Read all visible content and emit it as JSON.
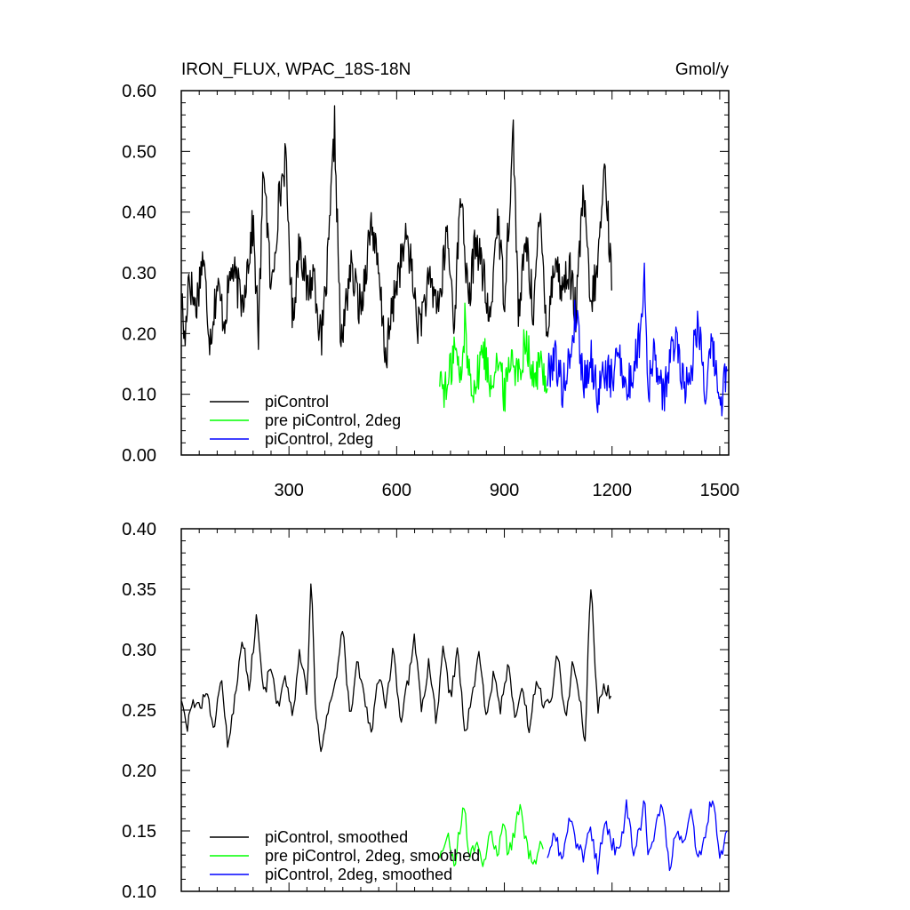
{
  "chart_data": [
    {
      "type": "line",
      "title": "IRON_FLUX, WPAC_18S-18N",
      "units": "Gmol/y",
      "xlim": [
        0,
        1525
      ],
      "ylim": [
        0.0,
        0.6
      ],
      "xticks": [
        300,
        600,
        900,
        1200,
        1500
      ],
      "yticks": [
        0.0,
        0.1,
        0.2,
        0.3,
        0.4,
        0.5,
        0.6
      ],
      "ytick_labels": [
        "0.00",
        "0.10",
        "0.20",
        "0.30",
        "0.40",
        "0.50",
        "0.60"
      ],
      "legend": "bottom-left",
      "grid": false,
      "series": [
        {
          "name": "piControl",
          "color": "#000000",
          "x_range": [
            1,
            1200
          ],
          "points": [
            [
              1,
              0.26
            ],
            [
              10,
              0.18
            ],
            [
              20,
              0.3
            ],
            [
              40,
              0.24
            ],
            [
              60,
              0.33
            ],
            [
              80,
              0.19
            ],
            [
              100,
              0.28
            ],
            [
              120,
              0.22
            ],
            [
              140,
              0.31
            ],
            [
              170,
              0.25
            ],
            [
              200,
              0.38
            ],
            [
              215,
              0.2
            ],
            [
              230,
              0.49
            ],
            [
              250,
              0.26
            ],
            [
              270,
              0.41
            ],
            [
              290,
              0.49
            ],
            [
              310,
              0.22
            ],
            [
              330,
              0.36
            ],
            [
              350,
              0.27
            ],
            [
              370,
              0.3
            ],
            [
              390,
              0.18
            ],
            [
              410,
              0.33
            ],
            [
              427,
              0.54
            ],
            [
              445,
              0.17
            ],
            [
              470,
              0.31
            ],
            [
              500,
              0.24
            ],
            [
              530,
              0.39
            ],
            [
              550,
              0.29
            ],
            [
              570,
              0.16
            ],
            [
              600,
              0.29
            ],
            [
              630,
              0.36
            ],
            [
              660,
              0.21
            ],
            [
              690,
              0.28
            ],
            [
              720,
              0.25
            ],
            [
              740,
              0.37
            ],
            [
              760,
              0.22
            ],
            [
              780,
              0.44
            ],
            [
              800,
              0.24
            ],
            [
              820,
              0.36
            ],
            [
              840,
              0.3
            ],
            [
              860,
              0.21
            ],
            [
              880,
              0.4
            ],
            [
              900,
              0.26
            ],
            [
              925,
              0.53
            ],
            [
              940,
              0.22
            ],
            [
              960,
              0.36
            ],
            [
              980,
              0.24
            ],
            [
              1000,
              0.39
            ],
            [
              1020,
              0.2
            ],
            [
              1040,
              0.33
            ],
            [
              1060,
              0.27
            ],
            [
              1080,
              0.31
            ],
            [
              1100,
              0.23
            ],
            [
              1120,
              0.44
            ],
            [
              1140,
              0.24
            ],
            [
              1160,
              0.31
            ],
            [
              1180,
              0.48
            ],
            [
              1200,
              0.27
            ]
          ]
        },
        {
          "name": "pre piControl, 2deg",
          "color": "#00ff00",
          "x_range": [
            720,
            1020
          ],
          "points": [
            [
              720,
              0.13
            ],
            [
              740,
              0.1
            ],
            [
              760,
              0.18
            ],
            [
              780,
              0.12
            ],
            [
              790,
              0.22
            ],
            [
              800,
              0.14
            ],
            [
              820,
              0.11
            ],
            [
              840,
              0.18
            ],
            [
              860,
              0.12
            ],
            [
              880,
              0.16
            ],
            [
              900,
              0.1
            ],
            [
              920,
              0.17
            ],
            [
              940,
              0.13
            ],
            [
              960,
              0.2
            ],
            [
              980,
              0.12
            ],
            [
              1000,
              0.15
            ],
            [
              1020,
              0.12
            ]
          ]
        },
        {
          "name": "piControl, 2deg",
          "color": "#0000ff",
          "x_range": [
            1020,
            1520
          ],
          "points": [
            [
              1020,
              0.13
            ],
            [
              1040,
              0.17
            ],
            [
              1060,
              0.11
            ],
            [
              1080,
              0.15
            ],
            [
              1100,
              0.24
            ],
            [
              1120,
              0.12
            ],
            [
              1140,
              0.16
            ],
            [
              1160,
              0.1
            ],
            [
              1180,
              0.14
            ],
            [
              1200,
              0.12
            ],
            [
              1220,
              0.18
            ],
            [
              1240,
              0.1
            ],
            [
              1260,
              0.14
            ],
            [
              1280,
              0.21
            ],
            [
              1290,
              0.31
            ],
            [
              1300,
              0.11
            ],
            [
              1320,
              0.17
            ],
            [
              1340,
              0.09
            ],
            [
              1360,
              0.15
            ],
            [
              1380,
              0.2
            ],
            [
              1400,
              0.11
            ],
            [
              1420,
              0.14
            ],
            [
              1440,
              0.23
            ],
            [
              1460,
              0.1
            ],
            [
              1480,
              0.18
            ],
            [
              1500,
              0.08
            ],
            [
              1520,
              0.14
            ]
          ]
        }
      ]
    },
    {
      "type": "line",
      "xlim": [
        0,
        1525
      ],
      "ylim": [
        0.1,
        0.4
      ],
      "xticks": [
        300,
        600,
        900,
        1200,
        1500
      ],
      "yticks": [
        0.1,
        0.15,
        0.2,
        0.25,
        0.3,
        0.35,
        0.4
      ],
      "ytick_labels": [
        "0.10",
        "0.15",
        "0.20",
        "0.25",
        "0.30",
        "0.35",
        "0.40"
      ],
      "legend": "bottom-left",
      "grid": false,
      "series": [
        {
          "name": "piControl, smoothed",
          "color": "#000000",
          "x_range": [
            1,
            1200
          ],
          "points": [
            [
              1,
              0.26
            ],
            [
              15,
              0.23
            ],
            [
              30,
              0.26
            ],
            [
              50,
              0.25
            ],
            [
              70,
              0.27
            ],
            [
              90,
              0.23
            ],
            [
              110,
              0.28
            ],
            [
              130,
              0.22
            ],
            [
              150,
              0.26
            ],
            [
              170,
              0.31
            ],
            [
              190,
              0.27
            ],
            [
              210,
              0.33
            ],
            [
              230,
              0.26
            ],
            [
              250,
              0.29
            ],
            [
              270,
              0.25
            ],
            [
              290,
              0.28
            ],
            [
              310,
              0.24
            ],
            [
              330,
              0.3
            ],
            [
              350,
              0.26
            ],
            [
              362,
              0.36
            ],
            [
              375,
              0.24
            ],
            [
              390,
              0.22
            ],
            [
              410,
              0.25
            ],
            [
              430,
              0.27
            ],
            [
              450,
              0.32
            ],
            [
              470,
              0.24
            ],
            [
              490,
              0.29
            ],
            [
              510,
              0.26
            ],
            [
              530,
              0.23
            ],
            [
              550,
              0.28
            ],
            [
              570,
              0.25
            ],
            [
              590,
              0.3
            ],
            [
              610,
              0.24
            ],
            [
              630,
              0.27
            ],
            [
              650,
              0.31
            ],
            [
              670,
              0.25
            ],
            [
              690,
              0.29
            ],
            [
              710,
              0.24
            ],
            [
              730,
              0.3
            ],
            [
              750,
              0.26
            ],
            [
              770,
              0.3
            ],
            [
              790,
              0.23
            ],
            [
              810,
              0.26
            ],
            [
              830,
              0.3
            ],
            [
              850,
              0.24
            ],
            [
              870,
              0.28
            ],
            [
              890,
              0.25
            ],
            [
              910,
              0.29
            ],
            [
              930,
              0.24
            ],
            [
              950,
              0.27
            ],
            [
              970,
              0.23
            ],
            [
              990,
              0.28
            ],
            [
              1010,
              0.25
            ],
            [
              1030,
              0.26
            ],
            [
              1050,
              0.3
            ],
            [
              1070,
              0.24
            ],
            [
              1090,
              0.29
            ],
            [
              1110,
              0.26
            ],
            [
              1125,
              0.22
            ],
            [
              1140,
              0.36
            ],
            [
              1160,
              0.25
            ],
            [
              1180,
              0.27
            ],
            [
              1200,
              0.26
            ]
          ]
        },
        {
          "name": "pre piControl, 2deg, smoothed",
          "color": "#00ff00",
          "x_range": [
            720,
            1010
          ],
          "points": [
            [
              720,
              0.13
            ],
            [
              740,
              0.15
            ],
            [
              760,
              0.12
            ],
            [
              780,
              0.16
            ],
            [
              790,
              0.17
            ],
            [
              800,
              0.13
            ],
            [
              820,
              0.14
            ],
            [
              840,
              0.12
            ],
            [
              860,
              0.15
            ],
            [
              880,
              0.13
            ],
            [
              900,
              0.16
            ],
            [
              910,
              0.13
            ],
            [
              930,
              0.15
            ],
            [
              945,
              0.175
            ],
            [
              960,
              0.14
            ],
            [
              980,
              0.12
            ],
            [
              1000,
              0.14
            ],
            [
              1010,
              0.135
            ]
          ]
        },
        {
          "name": "piControl, 2deg, smoothed",
          "color": "#0000ff",
          "x_range": [
            1020,
            1520
          ],
          "points": [
            [
              1020,
              0.13
            ],
            [
              1040,
              0.15
            ],
            [
              1060,
              0.125
            ],
            [
              1080,
              0.16
            ],
            [
              1100,
              0.14
            ],
            [
              1120,
              0.13
            ],
            [
              1140,
              0.15
            ],
            [
              1160,
              0.12
            ],
            [
              1180,
              0.16
            ],
            [
              1200,
              0.14
            ],
            [
              1220,
              0.13
            ],
            [
              1240,
              0.17
            ],
            [
              1260,
              0.135
            ],
            [
              1280,
              0.155
            ],
            [
              1290,
              0.185
            ],
            [
              1300,
              0.13
            ],
            [
              1320,
              0.15
            ],
            [
              1340,
              0.175
            ],
            [
              1360,
              0.12
            ],
            [
              1380,
              0.15
            ],
            [
              1400,
              0.14
            ],
            [
              1420,
              0.165
            ],
            [
              1440,
              0.125
            ],
            [
              1460,
              0.15
            ],
            [
              1480,
              0.18
            ],
            [
              1500,
              0.13
            ],
            [
              1520,
              0.145
            ]
          ]
        }
      ]
    }
  ]
}
